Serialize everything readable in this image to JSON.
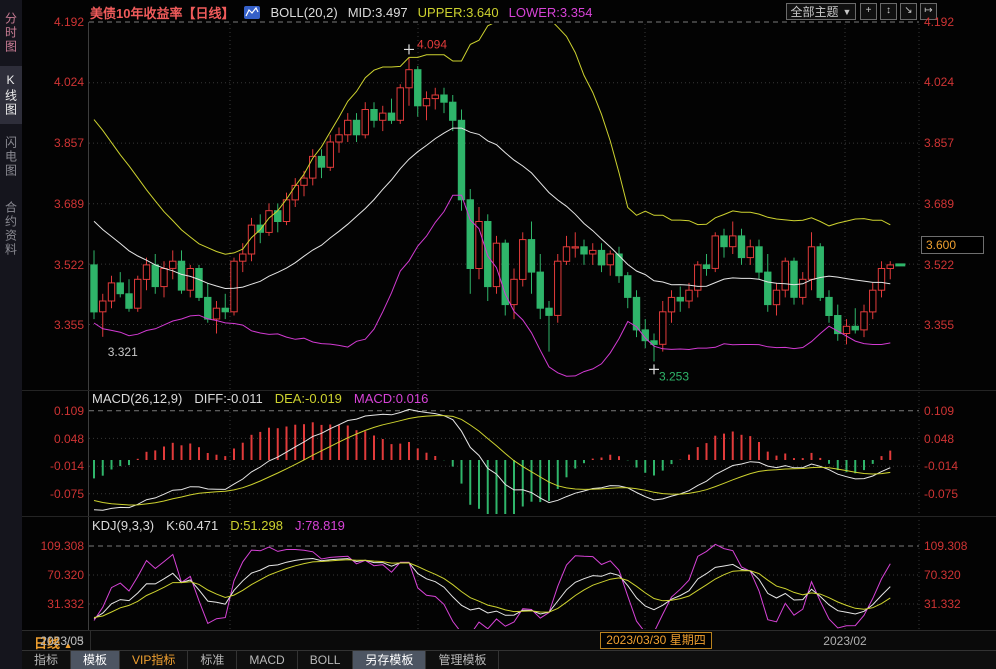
{
  "sidebar": {
    "items": [
      {
        "label": "分时图"
      },
      {
        "label": "K线图"
      },
      {
        "label": "闪电图"
      },
      {
        "label": "合约资料"
      }
    ]
  },
  "header": {
    "title": "美债10年收益率",
    "period_tag": "【日线】",
    "boll_params": "BOLL(20,2)",
    "boll_mid": "MID:3.497",
    "boll_upper": "UPPER:3.640",
    "boll_lower": "LOWER:3.354",
    "theme_button_label": "全部主题",
    "theme_arrow": "▼",
    "tool_icons": [
      "+",
      "↕",
      "↘",
      "↦"
    ]
  },
  "axis": {
    "period_label": "日线",
    "period_arrow": "▲",
    "month_labels": [
      "2023/02",
      "2023/03",
      "2023/05"
    ],
    "crosshair_date": "2023/03/30 星期四"
  },
  "toolbar": {
    "items": [
      "指标",
      "模板",
      "VIP指标",
      "标准",
      "MACD",
      "BOLL",
      "另存模板",
      "管理模板"
    ]
  },
  "chart_data": {
    "type": "candlestick",
    "title": "美债10年收益率 日线",
    "legend_position": "top",
    "colors": {
      "up": "#e23b3b",
      "down": "#2fb56a",
      "boll_mid": "#e6e6e6",
      "boll_upper": "#cdd22f",
      "boll_lower": "#d23ad2",
      "diff": "#e6e6e6",
      "dea": "#cdd22f",
      "k": "#e6e6e6",
      "d": "#cdd22f",
      "j": "#d743d7",
      "axis_label": "#cf3434",
      "grid": "#383838",
      "grid_dashed": "#7a7a7a",
      "marker": "#e0e0e0"
    },
    "main": {
      "y_ticks": [
        "4.192",
        "4.024",
        "3.857",
        "3.689",
        "3.522",
        "3.355"
      ],
      "y_range": [
        3.2,
        4.25
      ],
      "price_marker": "3.600",
      "boll": {
        "mid": 3.497,
        "upper": 3.64,
        "lower": 3.354
      },
      "prehistory_closes": [
        3.9,
        3.88,
        3.85,
        3.83,
        3.8,
        3.77,
        3.75,
        3.72,
        3.7,
        3.67,
        3.65,
        3.62,
        3.6,
        3.58,
        3.55,
        3.53,
        3.51,
        3.49,
        3.47,
        3.45
      ],
      "candles": [
        [
          3.52,
          3.56,
          3.37,
          3.39
        ],
        [
          3.39,
          3.44,
          3.321,
          3.42
        ],
        [
          3.42,
          3.49,
          3.4,
          3.47
        ],
        [
          3.47,
          3.5,
          3.43,
          3.44
        ],
        [
          3.44,
          3.48,
          3.39,
          3.4
        ],
        [
          3.4,
          3.49,
          3.39,
          3.48
        ],
        [
          3.48,
          3.54,
          3.45,
          3.52
        ],
        [
          3.52,
          3.55,
          3.44,
          3.46
        ],
        [
          3.46,
          3.53,
          3.43,
          3.51
        ],
        [
          3.51,
          3.56,
          3.48,
          3.53
        ],
        [
          3.53,
          3.56,
          3.44,
          3.45
        ],
        [
          3.45,
          3.52,
          3.43,
          3.51
        ],
        [
          3.51,
          3.52,
          3.42,
          3.43
        ],
        [
          3.43,
          3.47,
          3.36,
          3.37
        ],
        [
          3.37,
          3.42,
          3.33,
          3.4
        ],
        [
          3.4,
          3.44,
          3.37,
          3.39
        ],
        [
          3.39,
          3.54,
          3.38,
          3.53
        ],
        [
          3.53,
          3.58,
          3.5,
          3.55
        ],
        [
          3.55,
          3.65,
          3.53,
          3.63
        ],
        [
          3.63,
          3.66,
          3.58,
          3.61
        ],
        [
          3.61,
          3.69,
          3.6,
          3.67
        ],
        [
          3.67,
          3.69,
          3.61,
          3.64
        ],
        [
          3.64,
          3.72,
          3.63,
          3.7
        ],
        [
          3.7,
          3.76,
          3.68,
          3.74
        ],
        [
          3.74,
          3.78,
          3.71,
          3.76
        ],
        [
          3.76,
          3.84,
          3.74,
          3.82
        ],
        [
          3.82,
          3.84,
          3.76,
          3.79
        ],
        [
          3.79,
          3.88,
          3.78,
          3.86
        ],
        [
          3.86,
          3.9,
          3.83,
          3.88
        ],
        [
          3.88,
          3.94,
          3.86,
          3.92
        ],
        [
          3.92,
          3.94,
          3.86,
          3.88
        ],
        [
          3.88,
          3.97,
          3.87,
          3.95
        ],
        [
          3.95,
          3.97,
          3.9,
          3.92
        ],
        [
          3.92,
          3.96,
          3.89,
          3.94
        ],
        [
          3.94,
          3.98,
          3.91,
          3.92
        ],
        [
          3.92,
          4.02,
          3.91,
          4.01
        ],
        [
          4.01,
          4.094,
          3.96,
          4.06
        ],
        [
          4.06,
          4.07,
          3.93,
          3.96
        ],
        [
          3.96,
          4.0,
          3.92,
          3.98
        ],
        [
          3.98,
          4.01,
          3.95,
          3.99
        ],
        [
          3.99,
          4.01,
          3.94,
          3.97
        ],
        [
          3.97,
          3.99,
          3.89,
          3.92
        ],
        [
          3.92,
          3.95,
          3.67,
          3.7
        ],
        [
          3.7,
          3.73,
          3.44,
          3.51
        ],
        [
          3.51,
          3.68,
          3.48,
          3.64
        ],
        [
          3.64,
          3.66,
          3.42,
          3.46
        ],
        [
          3.46,
          3.6,
          3.44,
          3.58
        ],
        [
          3.58,
          3.59,
          3.38,
          3.41
        ],
        [
          3.41,
          3.51,
          3.37,
          3.48
        ],
        [
          3.48,
          3.61,
          3.46,
          3.59
        ],
        [
          3.59,
          3.64,
          3.44,
          3.5
        ],
        [
          3.5,
          3.55,
          3.37,
          3.4
        ],
        [
          3.4,
          3.42,
          3.28,
          3.38
        ],
        [
          3.38,
          3.55,
          3.36,
          3.53
        ],
        [
          3.53,
          3.6,
          3.52,
          3.57
        ],
        [
          3.57,
          3.61,
          3.54,
          3.57
        ],
        [
          3.57,
          3.59,
          3.52,
          3.55
        ],
        [
          3.55,
          3.58,
          3.52,
          3.56
        ],
        [
          3.56,
          3.58,
          3.5,
          3.52
        ],
        [
          3.52,
          3.56,
          3.49,
          3.55
        ],
        [
          3.55,
          3.57,
          3.47,
          3.49
        ],
        [
          3.49,
          3.5,
          3.4,
          3.43
        ],
        [
          3.43,
          3.45,
          3.32,
          3.34
        ],
        [
          3.34,
          3.37,
          3.29,
          3.31
        ],
        [
          3.31,
          3.33,
          3.253,
          3.3
        ],
        [
          3.3,
          3.42,
          3.28,
          3.39
        ],
        [
          3.39,
          3.45,
          3.36,
          3.43
        ],
        [
          3.43,
          3.46,
          3.39,
          3.42
        ],
        [
          3.42,
          3.47,
          3.4,
          3.45
        ],
        [
          3.45,
          3.53,
          3.43,
          3.52
        ],
        [
          3.52,
          3.55,
          3.49,
          3.51
        ],
        [
          3.51,
          3.61,
          3.5,
          3.6
        ],
        [
          3.6,
          3.62,
          3.54,
          3.57
        ],
        [
          3.57,
          3.64,
          3.55,
          3.6
        ],
        [
          3.6,
          3.62,
          3.52,
          3.54
        ],
        [
          3.54,
          3.59,
          3.52,
          3.57
        ],
        [
          3.57,
          3.59,
          3.48,
          3.5
        ],
        [
          3.5,
          3.55,
          3.39,
          3.41
        ],
        [
          3.41,
          3.47,
          3.38,
          3.45
        ],
        [
          3.45,
          3.54,
          3.43,
          3.53
        ],
        [
          3.53,
          3.54,
          3.41,
          3.43
        ],
        [
          3.43,
          3.5,
          3.41,
          3.48
        ],
        [
          3.48,
          3.61,
          3.45,
          3.57
        ],
        [
          3.57,
          3.58,
          3.42,
          3.43
        ],
        [
          3.43,
          3.45,
          3.36,
          3.38
        ],
        [
          3.38,
          3.41,
          3.31,
          3.33
        ],
        [
          3.33,
          3.37,
          3.3,
          3.35
        ],
        [
          3.35,
          3.4,
          3.33,
          3.34
        ],
        [
          3.34,
          3.41,
          3.32,
          3.39
        ],
        [
          3.39,
          3.47,
          3.37,
          3.45
        ],
        [
          3.45,
          3.53,
          3.43,
          3.51
        ],
        [
          3.51,
          3.53,
          3.48,
          3.52
        ]
      ],
      "annotations": [
        {
          "index": 1,
          "label": "3.321",
          "color": "#c8c8c8",
          "position": "below",
          "marker": false
        },
        {
          "index": 36,
          "label": "4.094",
          "color": "#e23b3b",
          "position": "above",
          "marker": true
        },
        {
          "index": 64,
          "label": "3.253",
          "color": "#2fb56a",
          "position": "below",
          "marker": true
        }
      ]
    },
    "macd": {
      "params": "MACD(26,12,9)",
      "diff_label": "DIFF:-0.011",
      "dea_label": "DEA:-0.019",
      "macd_label": "MACD:0.016",
      "diff": -0.011,
      "dea": -0.019,
      "macd": 0.016,
      "y_ticks": [
        "0.109",
        "0.048",
        "-0.014",
        "-0.075"
      ]
    },
    "kdj": {
      "params": "KDJ(9,3,3)",
      "k_label": "K:60.471",
      "d_label": "D:51.298",
      "j_label": "J:78.819",
      "k": 60.471,
      "d": 51.298,
      "j": 78.819,
      "y_ticks": [
        "109.308",
        "70.320",
        "31.332"
      ]
    }
  }
}
